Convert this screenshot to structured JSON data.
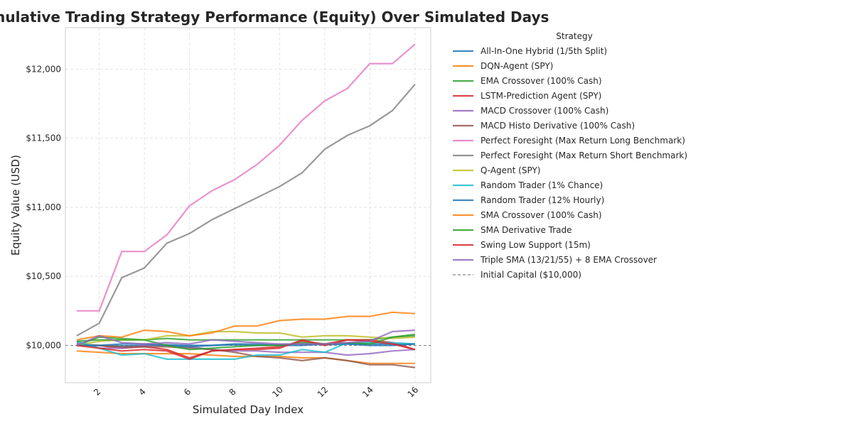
{
  "chart_data": {
    "type": "line",
    "title": "Cumulative Trading Strategy Performance (Equity) Over Simulated Days",
    "xlabel": "Simulated Day Index",
    "ylabel": "Equity Value (USD)",
    "xlim": [
      0.5,
      16.7
    ],
    "ylim": [
      9730,
      12300
    ],
    "xticks": [
      2,
      4,
      6,
      8,
      10,
      12,
      14,
      16
    ],
    "yticks": [
      10000,
      10500,
      11000,
      11500,
      12000
    ],
    "ytick_labels": [
      "$10,000",
      "$10,500",
      "$11,000",
      "$11,500",
      "$12,000"
    ],
    "grid": true,
    "legend": {
      "title": "Strategy",
      "placement": "outside-right"
    },
    "x": [
      1,
      2,
      3,
      4,
      5,
      6,
      7,
      8,
      9,
      10,
      11,
      12,
      13,
      14,
      15,
      16
    ],
    "series": [
      {
        "name": "All-In-One Hybrid (1/5th Split)",
        "color": "#1f77b4",
        "values": [
          10010,
          10000,
          9995,
          10000,
          10005,
          10000,
          10000,
          10005,
          10000,
          10005,
          10010,
          10005,
          10010,
          10010,
          10010,
          10010
        ]
      },
      {
        "name": "DQN-Agent (SPY)",
        "color": "#ff7f0e",
        "values": [
          9960,
          9950,
          9940,
          9940,
          9940,
          9940,
          9930,
          9920,
          9920,
          9920,
          9910,
          9910,
          9890,
          9870,
          9870,
          9870
        ]
      },
      {
        "name": "EMA Crossover (100% Cash)",
        "color": "#2ca02c",
        "values": [
          10000,
          10060,
          10050,
          10040,
          10050,
          10040,
          10040,
          10040,
          10040,
          10040,
          10040,
          10040,
          10040,
          10040,
          10060,
          10070
        ]
      },
      {
        "name": "LSTM-Prediction Agent (SPY)",
        "color": "#d62728",
        "values": [
          10000,
          10000,
          9980,
          9990,
          9970,
          9910,
          9960,
          9970,
          9980,
          9990,
          10030,
          10010,
          10040,
          10040,
          10020,
          9970
        ]
      },
      {
        "name": "MACD Crossover (100% Cash)",
        "color": "#9467bd",
        "values": [
          10020,
          9980,
          9980,
          10000,
          10000,
          9990,
          9970,
          9960,
          9960,
          9950,
          9950,
          9950,
          9930,
          9940,
          9960,
          9970
        ]
      },
      {
        "name": "MACD Histo Derivative (100% Cash)",
        "color": "#8c564b",
        "values": [
          10000,
          10000,
          9990,
          9990,
          9990,
          9980,
          9970,
          9950,
          9920,
          9910,
          9890,
          9910,
          9890,
          9860,
          9860,
          9840
        ]
      },
      {
        "name": "Perfect Foresight (Max Return Long Benchmark)",
        "color": "#e377c2",
        "values": [
          10250,
          10250,
          10680,
          10680,
          10800,
          11010,
          11120,
          11200,
          11310,
          11450,
          11630,
          11770,
          11860,
          12040,
          12040,
          12180
        ]
      },
      {
        "name": "Perfect Foresight (Max Return Short Benchmark)",
        "color": "#7f7f7f",
        "values": [
          10070,
          10160,
          10490,
          10560,
          10740,
          10810,
          10910,
          10990,
          11070,
          11150,
          11250,
          11420,
          11520,
          11590,
          11700,
          11890
        ]
      },
      {
        "name": "Q-Agent (SPY)",
        "color": "#bcbd22",
        "values": [
          10000,
          10030,
          10040,
          10040,
          10070,
          10070,
          10100,
          10100,
          10090,
          10090,
          10060,
          10070,
          10070,
          10060,
          10050,
          10060
        ]
      },
      {
        "name": "Random Trader (1% Chance)",
        "color": "#17becf",
        "values": [
          10030,
          9980,
          9930,
          9940,
          9900,
          9900,
          9900,
          9900,
          9930,
          9930,
          9970,
          9950,
          10020,
          10020,
          10020,
          10010
        ]
      },
      {
        "name": "Random Trader (12% Hourly)",
        "color": "#1f77b4",
        "values": [
          10000,
          10000,
          10010,
          10010,
          10000,
          9990,
          10000,
          10010,
          10010,
          10000,
          10000,
          10010,
          10010,
          10000,
          10000,
          10010
        ]
      },
      {
        "name": "SMA Crossover (100% Cash)",
        "color": "#ff7f0e",
        "values": [
          10040,
          10070,
          10060,
          10110,
          10100,
          10070,
          10090,
          10140,
          10140,
          10180,
          10190,
          10190,
          10210,
          10210,
          10240,
          10230
        ]
      },
      {
        "name": "SMA Derivative Trade",
        "color": "#2ca02c",
        "values": [
          10030,
          10040,
          10040,
          10040,
          10000,
          9970,
          9980,
          9990,
          10000,
          10000,
          10020,
          10010,
          10020,
          10010,
          10060,
          10080
        ]
      },
      {
        "name": "Swing Low Support (15m)",
        "color": "#d62728",
        "values": [
          10000,
          9980,
          9960,
          9970,
          9960,
          9900,
          9960,
          9970,
          9970,
          9980,
          10040,
          10000,
          10040,
          10030,
          10010,
          9970
        ]
      },
      {
        "name": "Triple SMA (13/21/55) + 8 EMA Crossover",
        "color": "#9467bd",
        "values": [
          10000,
          10070,
          10020,
          10010,
          10020,
          10010,
          10040,
          10030,
          10020,
          10010,
          10010,
          10010,
          10020,
          10030,
          10100,
          10110
        ]
      }
    ],
    "baseline": {
      "name": "Initial Capital ($10,000)",
      "value": 10000,
      "color": "#808080",
      "style": "dashed"
    }
  }
}
